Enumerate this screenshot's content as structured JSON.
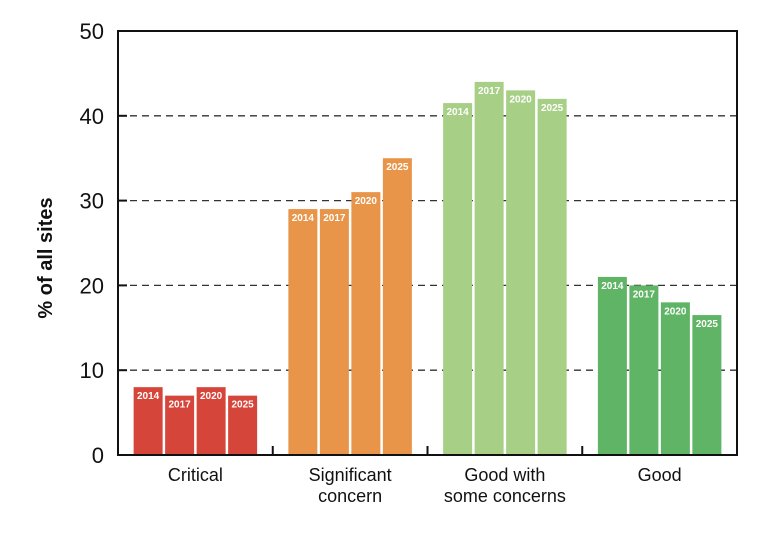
{
  "chart_data": {
    "type": "bar",
    "title": "",
    "xlabel": "",
    "ylabel": "% of all sites",
    "ylim": [
      0,
      50
    ],
    "yticks": [
      0,
      10,
      20,
      30,
      40,
      50
    ],
    "grid": "horizontal dashed",
    "categories": [
      {
        "lines": [
          "Critical"
        ],
        "color": "#d6453a"
      },
      {
        "lines": [
          "Significant",
          "concern"
        ],
        "color": "#e8954a"
      },
      {
        "lines": [
          "Good with",
          "some concerns"
        ],
        "color": "#a7cf86"
      },
      {
        "lines": [
          "Good"
        ],
        "color": "#5fb465"
      }
    ],
    "series": [
      {
        "name": "2014",
        "values": [
          8,
          29,
          41.5,
          21
        ]
      },
      {
        "name": "2017",
        "values": [
          7,
          29,
          44,
          20
        ]
      },
      {
        "name": "2020",
        "values": [
          8,
          31,
          43,
          18
        ]
      },
      {
        "name": "2025",
        "values": [
          7,
          35,
          42,
          16.5
        ]
      }
    ]
  }
}
